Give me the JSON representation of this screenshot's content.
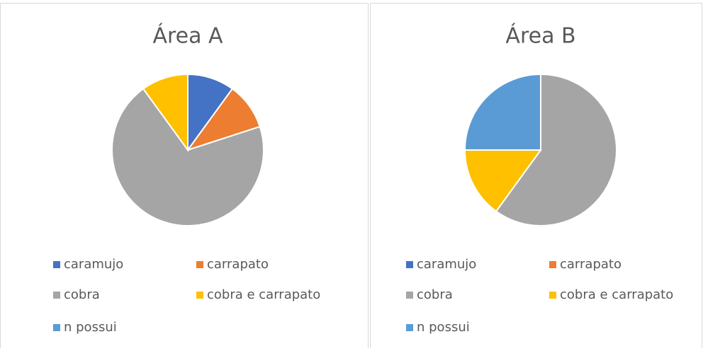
{
  "chart_data": [
    {
      "type": "pie",
      "title": "Área A",
      "categories": [
        "caramujo",
        "carrapato",
        "cobra",
        "cobra e carrapato",
        "n possui"
      ],
      "values": [
        10,
        10,
        70,
        10,
        0
      ],
      "colors": [
        "#4472c4",
        "#ed7d31",
        "#a5a5a5",
        "#ffc000",
        "#5b9bd5"
      ]
    },
    {
      "type": "pie",
      "title": "Área B",
      "categories": [
        "caramujo",
        "carrapato",
        "cobra",
        "cobra e carrapato",
        "n possui"
      ],
      "values": [
        0,
        0,
        60,
        15,
        25
      ],
      "colors": [
        "#4472c4",
        "#ed7d31",
        "#a5a5a5",
        "#ffc000",
        "#5b9bd5"
      ]
    }
  ]
}
